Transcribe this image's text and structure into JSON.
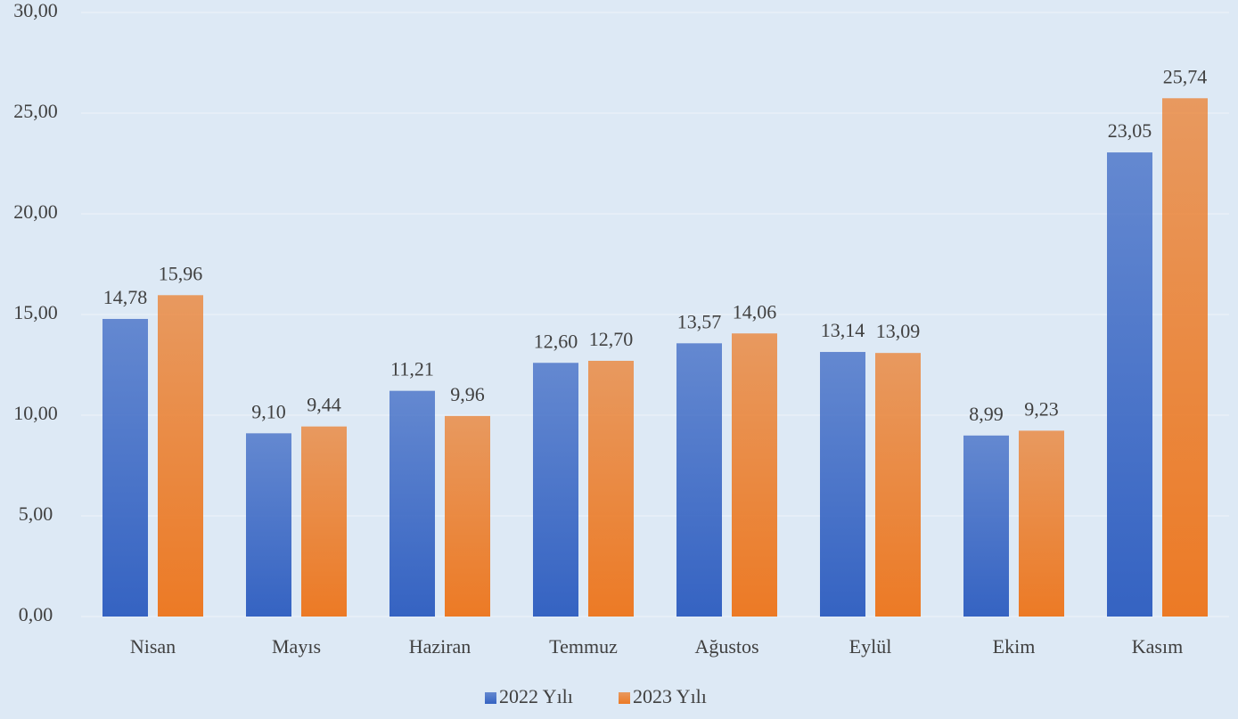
{
  "chart_data": {
    "type": "bar",
    "categories": [
      "Nisan",
      "Mayıs",
      "Haziran",
      "Temmuz",
      "Ağustos",
      "Eylül",
      "Ekim",
      "Kasım"
    ],
    "series": [
      {
        "name": "2022 Yılı",
        "color": "#3563c2",
        "values": [
          14.78,
          9.1,
          11.21,
          12.6,
          13.57,
          13.14,
          8.99,
          23.05
        ],
        "value_labels": [
          "14,78",
          "9,10",
          "11,21",
          "12,60",
          "13,57",
          "13,14",
          "8,99",
          "23,05"
        ]
      },
      {
        "name": "2023 Yılı",
        "color": "#ec7a25",
        "values": [
          15.96,
          9.44,
          9.96,
          12.7,
          14.06,
          13.09,
          9.23,
          25.74
        ],
        "value_labels": [
          "15,96",
          "9,44",
          "9,96",
          "12,70",
          "14,06",
          "13,09",
          "9,23",
          "25,74"
        ]
      }
    ],
    "ylim": [
      0,
      30
    ],
    "yticks": [
      {
        "value": 0,
        "label": "0,00"
      },
      {
        "value": 5,
        "label": "5,00"
      },
      {
        "value": 10,
        "label": "10,00"
      },
      {
        "value": 15,
        "label": "15,00"
      },
      {
        "value": 20,
        "label": "20,00"
      },
      {
        "value": 25,
        "label": "25,00"
      },
      {
        "value": 30,
        "label": "30,00"
      }
    ],
    "grid": true,
    "legend": "bottom"
  }
}
